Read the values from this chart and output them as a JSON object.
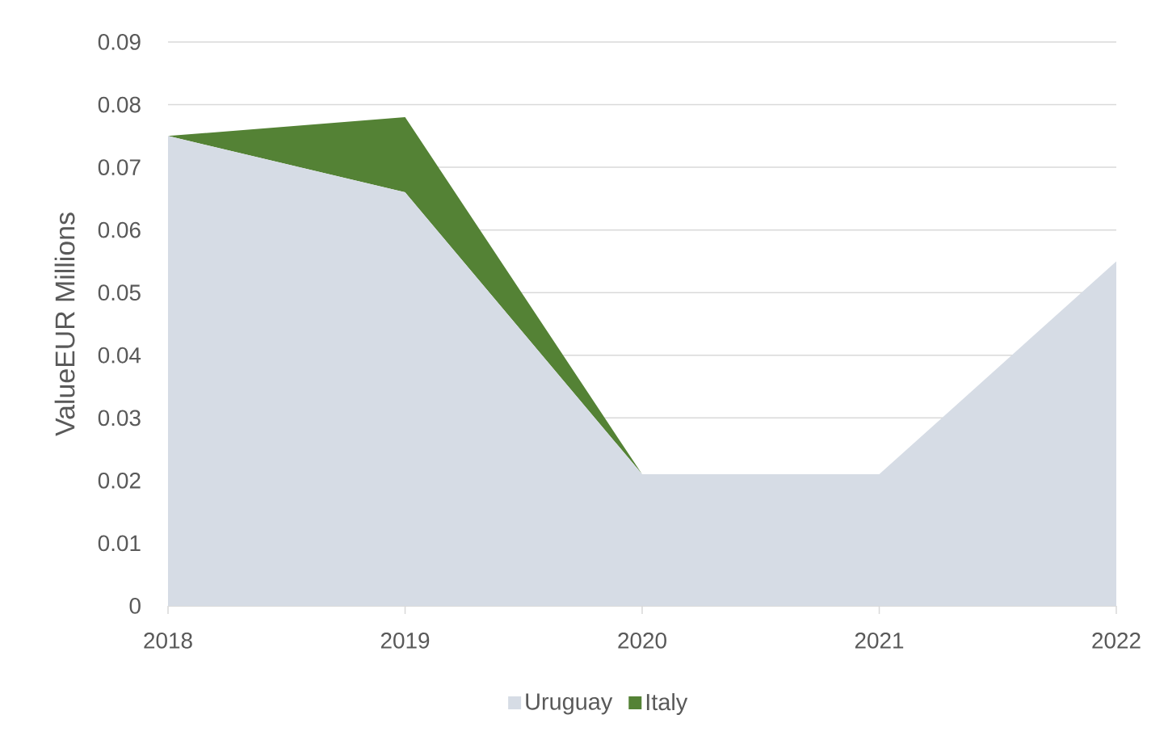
{
  "chart_data": {
    "type": "area",
    "stacked": true,
    "categories": [
      "2018",
      "2019",
      "2020",
      "2021",
      "2022"
    ],
    "series": [
      {
        "name": "Uruguay",
        "color": "#d6dce5",
        "values": [
          0.075,
          0.066,
          0.021,
          0.021,
          0.055
        ]
      },
      {
        "name": "Italy",
        "color": "#548235",
        "values": [
          0,
          0.012,
          0,
          0,
          0
        ]
      }
    ],
    "ylabel": "ValueEUR Millions",
    "ylim": [
      0,
      0.09
    ],
    "yticks": [
      0,
      0.01,
      0.02,
      0.03,
      0.04,
      0.05,
      0.06,
      0.07,
      0.08,
      0.09
    ],
    "grid": "y",
    "legend": "bottom"
  }
}
